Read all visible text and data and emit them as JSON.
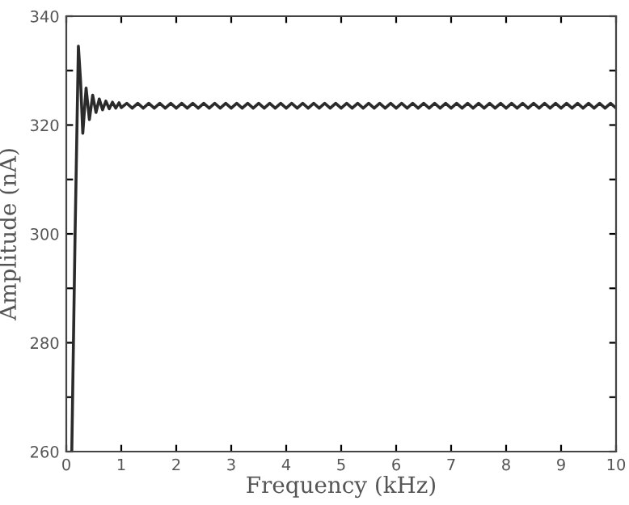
{
  "chart_data": {
    "type": "line",
    "xlabel": "Frequency (kHz)",
    "ylabel": "Amplitude (nA)",
    "xlim": [
      0,
      10
    ],
    "ylim": [
      260,
      340
    ],
    "xticks": [
      0,
      1,
      2,
      3,
      4,
      5,
      6,
      7,
      8,
      9,
      10
    ],
    "yticks": [
      260,
      {
        "value": 270,
        "label": null
      },
      280,
      {
        "value": 290,
        "label": null
      },
      300,
      {
        "value": 310,
        "label": null
      },
      320,
      {
        "value": 330,
        "label": null
      },
      340
    ],
    "grid": false,
    "marker": "none",
    "line_style": "solid",
    "series": [
      {
        "color": "#2b2b2b",
        "x": [
          0.1,
          0.16,
          0.22,
          0.26,
          0.3,
          0.36,
          0.42,
          0.48,
          0.54,
          0.6,
          0.66,
          0.72,
          0.78,
          0.84,
          0.9,
          0.96,
          1.0,
          1.1,
          1.2,
          1.3,
          1.4,
          1.5,
          1.6,
          1.7,
          1.8,
          1.9,
          2.0,
          2.1,
          2.2,
          2.3,
          2.4,
          2.5,
          2.6,
          2.7,
          2.8,
          2.9,
          3.0,
          3.1,
          3.2,
          3.3,
          3.4,
          3.5,
          3.6,
          3.7,
          3.8,
          3.9,
          4.0,
          4.1,
          4.2,
          4.3,
          4.4,
          4.5,
          4.6,
          4.7,
          4.8,
          4.9,
          5.0,
          5.1,
          5.2,
          5.3,
          5.4,
          5.5,
          5.6,
          5.7,
          5.8,
          5.9,
          6.0,
          6.1,
          6.2,
          6.3,
          6.4,
          6.5,
          6.6,
          6.7,
          6.8,
          6.9,
          7.0,
          7.1,
          7.2,
          7.3,
          7.4,
          7.5,
          7.6,
          7.7,
          7.8,
          7.9,
          8.0,
          8.1,
          8.2,
          8.3,
          8.4,
          8.5,
          8.6,
          8.7,
          8.8,
          8.9,
          9.0,
          9.1,
          9.2,
          9.3,
          9.4,
          9.5,
          9.6,
          9.7,
          9.8,
          9.9,
          10.0
        ],
        "values": [
          260,
          300,
          334.5,
          328,
          318.5,
          326.8,
          321,
          325.5,
          322.3,
          324.8,
          322.8,
          324.4,
          323,
          324.2,
          323.1,
          324.1,
          323.2,
          324.0,
          323.1,
          324.0,
          323.1,
          324.0,
          323.1,
          324.0,
          323.1,
          324.0,
          323.1,
          324.0,
          323.1,
          324.0,
          323.1,
          324.0,
          323.1,
          324.0,
          323.1,
          324.0,
          323.1,
          324.0,
          323.1,
          324.0,
          323.1,
          324.0,
          323.1,
          324.0,
          323.1,
          324.0,
          323.1,
          324.0,
          323.1,
          324.0,
          323.1,
          324.0,
          323.1,
          324.0,
          323.1,
          324.0,
          323.1,
          324.0,
          323.1,
          324.0,
          323.1,
          324.0,
          323.1,
          324.0,
          323.1,
          324.0,
          323.1,
          324.0,
          323.1,
          324.0,
          323.1,
          324.0,
          323.1,
          324.0,
          323.1,
          324.0,
          323.1,
          324.0,
          323.1,
          324.0,
          323.1,
          324.0,
          323.1,
          324.0,
          323.1,
          324.0,
          323.1,
          324.0,
          323.1,
          324.0,
          323.1,
          324.0,
          323.1,
          324.0,
          323.1,
          324.0,
          323.1,
          324.0,
          323.1,
          324.0,
          323.1,
          324.0,
          323.1,
          324.0,
          323.1,
          324.0,
          323.1
        ]
      }
    ]
  }
}
